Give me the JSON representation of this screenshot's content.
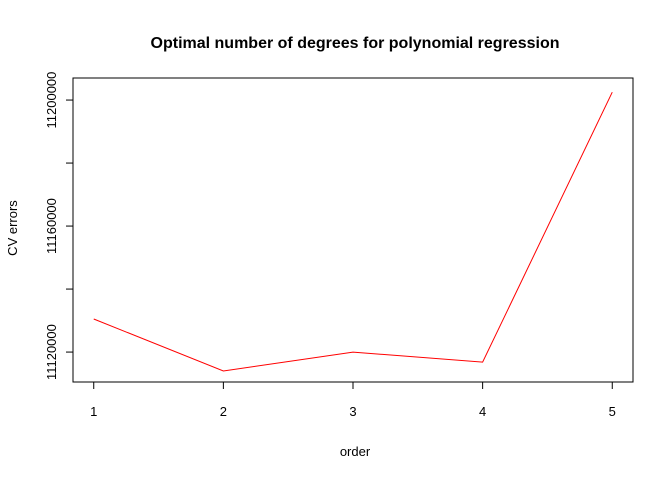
{
  "chart_data": {
    "type": "line",
    "title": "Optimal number of degrees for polynomial regression",
    "xlabel": "order",
    "ylabel": "CV errors",
    "x": [
      1,
      2,
      3,
      4,
      5
    ],
    "series": [
      {
        "values": [
          11130500,
          11114000,
          11120000,
          11116800,
          11202500
        ],
        "color": "#ff0000"
      }
    ],
    "xlim": [
      0.84,
      5.16
    ],
    "ylim": [
      11110500,
      11207000
    ],
    "xticks": [
      1,
      2,
      3,
      4,
      5
    ],
    "yticks": [
      11120000,
      11140000,
      11160000,
      11180000,
      11200000
    ],
    "ytick_labels": [
      "11120000",
      "",
      "11160000",
      "",
      "11200000"
    ],
    "grid": false,
    "legend": "none"
  }
}
